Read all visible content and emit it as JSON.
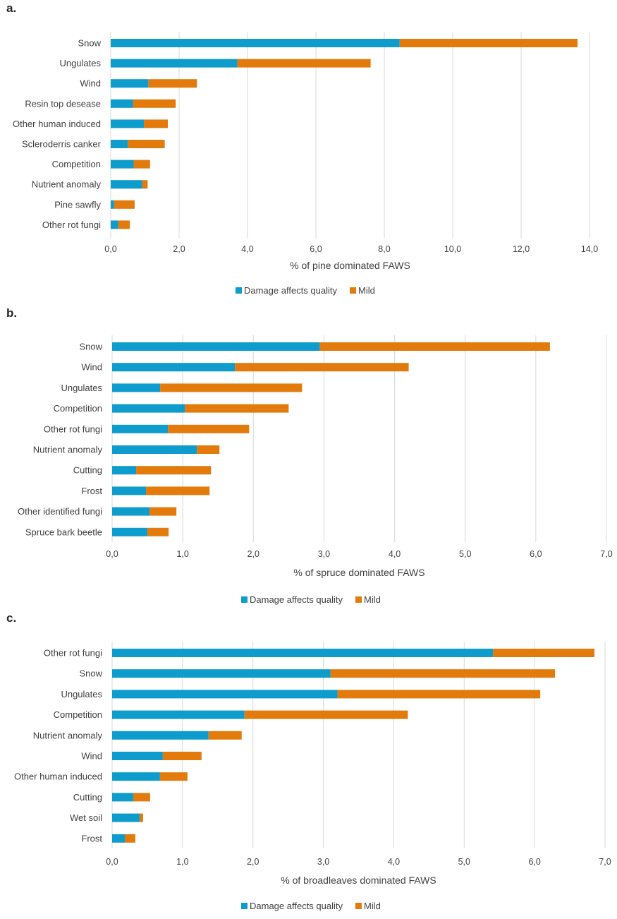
{
  "colors": {
    "quality": "#0d9ccb",
    "mild": "#e27b0c",
    "grid": "#d9d9d9"
  },
  "chart_data": [
    {
      "type": "bar",
      "orientation": "horizontal",
      "stacked": true,
      "panel_label": "a.",
      "categories": [
        "Snow",
        "Ungulates",
        "Wind",
        "Resin top desease",
        "Other human induced",
        "Scleroderris canker",
        "Competition",
        "Nutrient anomaly",
        "Pine sawfly",
        "Other rot fungi"
      ],
      "series": [
        {
          "name": "Damage affects quality",
          "values": [
            8.45,
            3.7,
            1.1,
            0.65,
            0.97,
            0.5,
            0.67,
            0.92,
            0.1,
            0.22
          ]
        },
        {
          "name": "Mild",
          "values": [
            5.2,
            3.9,
            1.42,
            1.25,
            0.7,
            1.08,
            0.48,
            0.16,
            0.6,
            0.34
          ]
        }
      ],
      "xlabel": "% of pine dominated FAWS",
      "xlim": [
        0,
        14
      ],
      "xticks": [
        "0,0",
        "2,0",
        "4,0",
        "6,0",
        "8,0",
        "10,0",
        "12,0",
        "14,0"
      ],
      "grid": true,
      "legend": "bottom"
    },
    {
      "type": "bar",
      "orientation": "horizontal",
      "stacked": true,
      "panel_label": "b.",
      "categories": [
        "Snow",
        "Wind",
        "Ungulates",
        "Competition",
        "Other rot fungi",
        "Nutrient anomaly",
        "Cutting",
        "Frost",
        "Other identified fungi",
        "Spruce bark beetle"
      ],
      "series": [
        {
          "name": "Damage affects quality",
          "values": [
            2.94,
            1.74,
            0.68,
            1.03,
            0.79,
            1.2,
            0.34,
            0.48,
            0.53,
            0.5
          ]
        },
        {
          "name": "Mild",
          "values": [
            3.26,
            2.46,
            2.01,
            1.47,
            1.15,
            0.32,
            1.06,
            0.9,
            0.38,
            0.3
          ]
        }
      ],
      "xlabel": "% of spruce dominated FAWS",
      "xlim": [
        0,
        7
      ],
      "xticks": [
        "0,0",
        "1,0",
        "2,0",
        "3,0",
        "4,0",
        "5,0",
        "6,0",
        "7,0"
      ],
      "grid": true,
      "legend": "bottom"
    },
    {
      "type": "bar",
      "orientation": "horizontal",
      "stacked": true,
      "panel_label": "c.",
      "categories": [
        "Other rot fungi",
        "Snow",
        "Ungulates",
        "Competition",
        "Nutrient anomaly",
        "Wind",
        "Other human induced",
        "Cutting",
        "Wet soil",
        "Frost"
      ],
      "series": [
        {
          "name": "Damage affects quality",
          "values": [
            5.41,
            3.1,
            3.2,
            1.88,
            1.37,
            0.72,
            0.68,
            0.3,
            0.39,
            0.18
          ]
        },
        {
          "name": "Mild",
          "values": [
            1.44,
            3.19,
            2.88,
            2.32,
            0.47,
            0.55,
            0.39,
            0.24,
            0.05,
            0.15
          ]
        }
      ],
      "xlabel": "% of broadleaves dominated FAWS",
      "xlim": [
        0,
        7
      ],
      "xticks": [
        "0,0",
        "1,0",
        "2,0",
        "3,0",
        "4,0",
        "5,0",
        "6,0",
        "7,0"
      ],
      "grid": true,
      "legend": "bottom"
    }
  ]
}
